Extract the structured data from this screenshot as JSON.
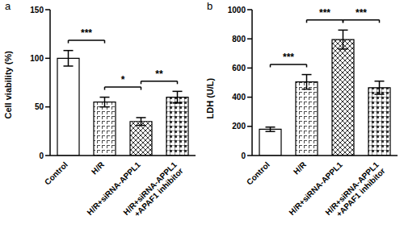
{
  "chart_data": [
    {
      "panel": "a",
      "type": "bar",
      "categories": [
        "Control",
        "H/R",
        "H/R+siRNA-APPL1",
        "H/R+siRNA-APPL1+APAF1 inhibitor"
      ],
      "values": [
        100,
        55,
        35,
        60
      ],
      "errors": [
        8,
        5,
        4,
        6
      ],
      "y_label": "Cell viability (%)",
      "ylim": [
        0,
        150
      ],
      "yticks": [
        0,
        50,
        100,
        150
      ],
      "color": "#000000",
      "comparisons": [
        {
          "from": 0,
          "to": 1,
          "label": "***"
        },
        {
          "from": 1,
          "to": 2,
          "label": "*"
        },
        {
          "from": 2,
          "to": 3,
          "label": "**"
        }
      ]
    },
    {
      "panel": "b",
      "type": "bar",
      "categories": [
        "Control",
        "H/R",
        "H/R+siRNA-APPL1",
        "H/R+siRNA-APPL1+APAF1 inhibitor"
      ],
      "values": [
        180,
        505,
        795,
        465
      ],
      "errors": [
        15,
        50,
        65,
        45
      ],
      "y_label": "LDH (U/L)",
      "ylim": [
        0,
        1000
      ],
      "yticks": [
        0,
        200,
        400,
        600,
        800,
        1000
      ],
      "color": "#000000",
      "comparisons": [
        {
          "from": 0,
          "to": 1,
          "label": "***"
        },
        {
          "from": 1,
          "to": 2,
          "label": "***"
        },
        {
          "from": 2,
          "to": 3,
          "label": "***"
        }
      ]
    }
  ]
}
